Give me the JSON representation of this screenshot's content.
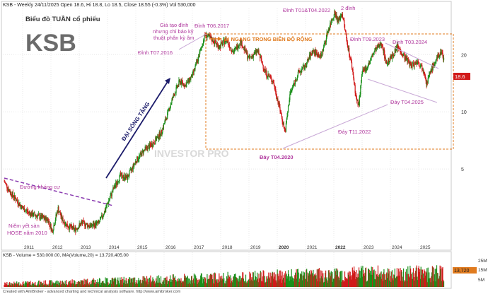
{
  "header": {
    "ticker_line": "KSB - Weekly 24/11/2025 Open 18.6, Hi 18.8, Lo 18.5, Close 18.55 (-0.3%) Vol 530,000",
    "subtitle": "Biểu đồ TUẦN cổ phiếu",
    "symbol": "KSB"
  },
  "annotations": {
    "resistance": "Đường kháng cự",
    "listing_1": "Niêm yết sàn",
    "listing_2": "HOSE năm 2010",
    "wave": "ĐẠI SÓNG TĂNG",
    "div_1": "Giá tạo đỉnh",
    "div_2": "nhưng chỉ báo kỹ",
    "div_3": "thuật phân kỳ âm",
    "peak_2016": "Đỉnh T07.2016",
    "peak_2017": "Đỉnh T06.2017",
    "range": "ĐI NGANG TRONG BIÊN ĐỘ RỘNG",
    "peak_2022": "Đỉnh T01&T04.2022",
    "double_top": "2 đỉnh",
    "peak_2023": "Đỉnh T09.2023",
    "peak_2024": "Đỉnh T03.2024",
    "trough_2025": "Đáy T04.2025",
    "trough_2022": "Đáy T11.2022",
    "trough_2020": "Đáy T04.2020",
    "watermark": "INVESTOR PRO"
  },
  "volume_label": "KSB - Volume = 530,000.00, MA(Volume,20) = 13,720,405.00",
  "footer": "Created with AmiBroker - advanced charting and technical analysis software. http://www.amibroker.com",
  "price_tag": "18.6",
  "volume_tag": "13,720",
  "colors": {
    "up": "#1a8f1a",
    "down": "#d11a1a",
    "annotation": "#b0399e",
    "range_box": "#e07b1f",
    "wave_arrow": "#1c1c6b",
    "grid": "#e4e4e4"
  },
  "chart_data": {
    "type": "candlestick",
    "scale": "log",
    "x_ticks": [
      "2011",
      "2012",
      "2013",
      "2014",
      "2015",
      "2016",
      "2017",
      "2018",
      "2019",
      "2020",
      "2021",
      "2022",
      "2023",
      "2024",
      "2025"
    ],
    "y_ticks": [
      5,
      10,
      20
    ],
    "volume_ticks": [
      "25M",
      "15M",
      "5M"
    ],
    "xlim": [
      2010.3,
      2026.1
    ],
    "ylim": [
      1.9,
      35
    ],
    "price_path": [
      [
        2010.35,
        4.3
      ],
      [
        2010.55,
        3.8
      ],
      [
        2010.8,
        3.4
      ],
      [
        2011.0,
        3.1
      ],
      [
        2011.3,
        2.9
      ],
      [
        2011.6,
        2.8
      ],
      [
        2011.9,
        2.7
      ],
      [
        2012.05,
        2.35
      ],
      [
        2012.25,
        3.1
      ],
      [
        2012.4,
        2.7
      ],
      [
        2012.6,
        2.5
      ],
      [
        2012.85,
        2.4
      ],
      [
        2013.1,
        2.6
      ],
      [
        2013.4,
        2.5
      ],
      [
        2013.7,
        2.6
      ],
      [
        2013.9,
        3.0
      ],
      [
        2014.2,
        3.9
      ],
      [
        2014.45,
        4.6
      ],
      [
        2014.7,
        4.5
      ],
      [
        2015.0,
        5.5
      ],
      [
        2015.3,
        6.3
      ],
      [
        2015.6,
        6.8
      ],
      [
        2015.9,
        7.8
      ],
      [
        2016.1,
        9.5
      ],
      [
        2016.3,
        11.8
      ],
      [
        2016.55,
        14.5
      ],
      [
        2016.75,
        13.8
      ],
      [
        2017.0,
        15.5
      ],
      [
        2017.2,
        19.0
      ],
      [
        2017.45,
        25.5
      ],
      [
        2017.7,
        24.0
      ],
      [
        2017.95,
        22.0
      ],
      [
        2018.2,
        24.0
      ],
      [
        2018.45,
        20.5
      ],
      [
        2018.7,
        23.5
      ],
      [
        2019.0,
        19.0
      ],
      [
        2019.3,
        21.0
      ],
      [
        2019.6,
        16.0
      ],
      [
        2019.85,
        14.5
      ],
      [
        2020.05,
        11.0
      ],
      [
        2020.28,
        7.8
      ],
      [
        2020.45,
        12.5
      ],
      [
        2020.75,
        16.0
      ],
      [
        2021.0,
        17.5
      ],
      [
        2021.25,
        21.0
      ],
      [
        2021.55,
        19.5
      ],
      [
        2021.8,
        27.0
      ],
      [
        2022.03,
        33.5
      ],
      [
        2022.15,
        30.0
      ],
      [
        2022.3,
        33.0
      ],
      [
        2022.45,
        24.0
      ],
      [
        2022.65,
        17.0
      ],
      [
        2022.8,
        11.5
      ],
      [
        2022.88,
        10.8
      ],
      [
        2023.0,
        16.0
      ],
      [
        2023.2,
        17.5
      ],
      [
        2023.45,
        21.0
      ],
      [
        2023.7,
        23.0
      ],
      [
        2023.85,
        18.0
      ],
      [
        2024.05,
        19.5
      ],
      [
        2024.25,
        22.0
      ],
      [
        2024.5,
        19.5
      ],
      [
        2024.75,
        17.5
      ],
      [
        2024.95,
        18.5
      ],
      [
        2025.2,
        16.5
      ],
      [
        2025.28,
        14.0
      ],
      [
        2025.45,
        16.8
      ],
      [
        2025.65,
        19.0
      ],
      [
        2025.8,
        21.0
      ],
      [
        2025.9,
        18.55
      ]
    ],
    "last_close": 18.55,
    "volume_ma20": 13720405,
    "last_volume": 530000
  }
}
